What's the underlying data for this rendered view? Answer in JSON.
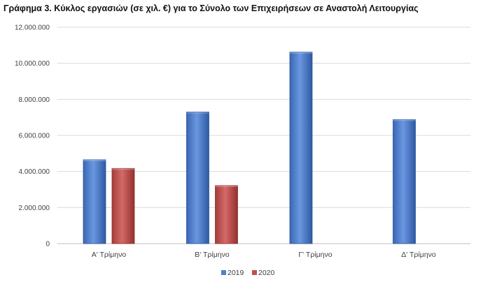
{
  "title": "Γράφημα 3.  Κύκλος εργασιών (σε χιλ. €) για το Σύνολο των Επιχειρήσεων σε Αναστολή Λειτουργίας",
  "colors": {
    "series_2019": "#4f7fcf",
    "series_2020": "#c0504d",
    "grid": "#d9d9d9",
    "text": "#404040"
  },
  "chart_data": {
    "type": "bar",
    "categories": [
      "Α' Τρίμηνο",
      "Β' Τρίμηνο",
      "Γ' Τρίμηνο",
      "Δ' Τρίμηνο"
    ],
    "series": [
      {
        "name": "2019",
        "values": [
          4650000,
          7300000,
          10620000,
          6880000
        ]
      },
      {
        "name": "2020",
        "values": [
          4170000,
          3220000,
          null,
          null
        ]
      }
    ],
    "yticks": [
      0,
      2000000,
      4000000,
      6000000,
      8000000,
      10000000,
      12000000
    ],
    "ytick_labels": [
      "0",
      "2.000.000",
      "4.000.000",
      "6.000.000",
      "8.000.000",
      "10.000.000",
      "12.000.000"
    ],
    "ylim": [
      0,
      12000000
    ],
    "grid": true,
    "legend_position": "bottom-center"
  }
}
